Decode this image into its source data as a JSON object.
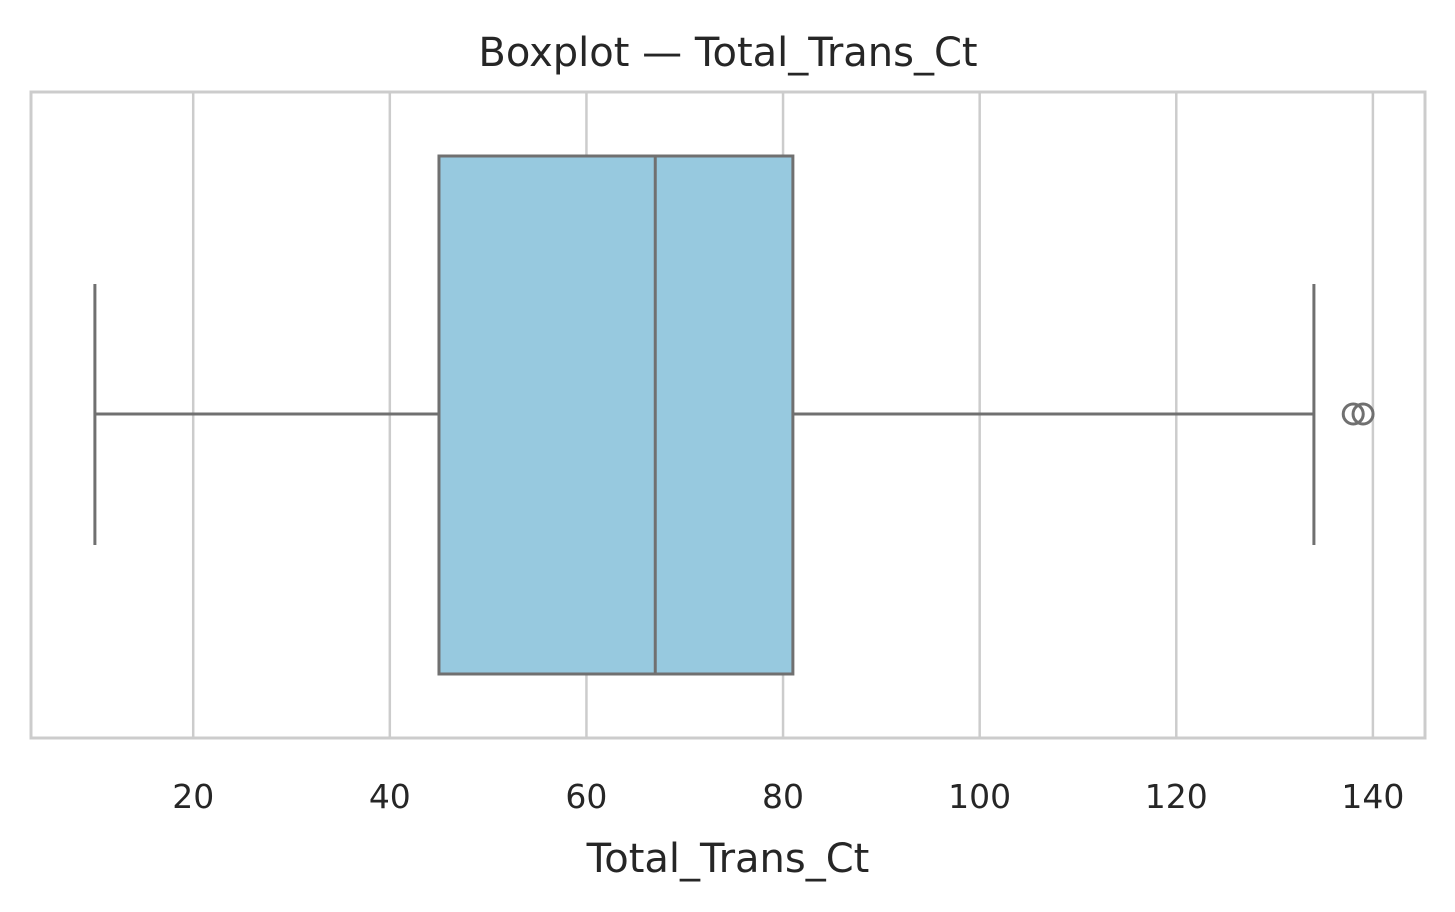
{
  "chart_data": {
    "type": "boxplot",
    "title": "Boxplot — Total_Trans_Ct",
    "xlabel": "Total_Trans_Ct",
    "ylabel": "",
    "xlim": [
      3.5,
      145.3
    ],
    "xticks": [
      20,
      40,
      60,
      80,
      100,
      120,
      140
    ],
    "xtick_labels": [
      "20",
      "40",
      "60",
      "80",
      "100",
      "120",
      "140"
    ],
    "grid": true,
    "orientation": "horizontal",
    "box": {
      "whisker_low": 10,
      "q1": 45,
      "median": 67,
      "q3": 81,
      "whisker_high": 134
    },
    "outliers": [
      138,
      139
    ],
    "colors": {
      "box_fill": "#97c9df",
      "box_edge": "#707070",
      "grid": "#cccccc",
      "spine": "#cccccc"
    }
  }
}
